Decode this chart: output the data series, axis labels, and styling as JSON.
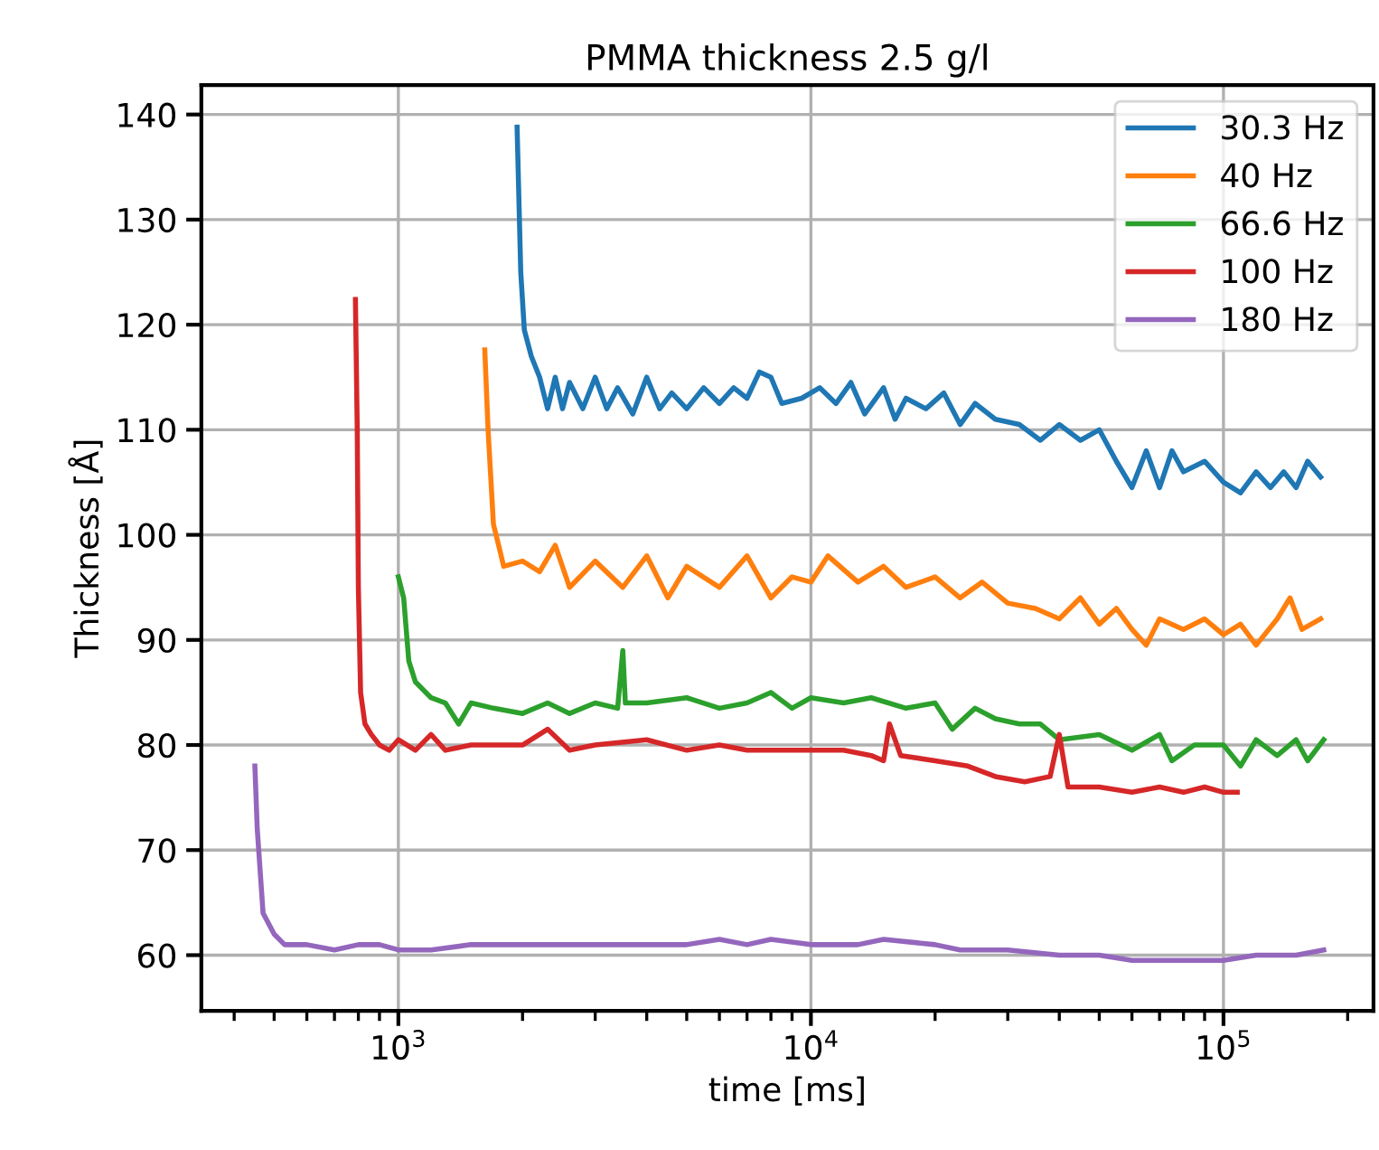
{
  "chart_data": {
    "type": "line",
    "title": "PMMA thickness 2.5 g/l",
    "xlabel": "time [ms]",
    "ylabel": "Thickness [Å]",
    "log": "x",
    "grid": true,
    "legend": "top right",
    "xlim": [
      333,
      231000
    ],
    "xticks": [
      {
        "value": 1000,
        "label": "10$^{3}$"
      },
      {
        "value": 10000,
        "label": "10$^{4}$"
      },
      {
        "value": 100000,
        "label": "10$^{5}$"
      }
    ],
    "ylim": [
      54.7,
      142.8
    ],
    "yticks": [
      60,
      70,
      80,
      90,
      100,
      110,
      120,
      130,
      140
    ],
    "series": [
      {
        "name": "30.3 Hz",
        "color": "#1f77b4",
        "x": [
          1940,
          1980,
          2020,
          2100,
          2200,
          2300,
          2400,
          2500,
          2600,
          2800,
          3000,
          3200,
          3400,
          3700,
          4000,
          4300,
          4600,
          5000,
          5500,
          6000,
          6500,
          7000,
          7500,
          8000,
          8500,
          9500,
          10500,
          11500,
          12500,
          13500,
          15000,
          16000,
          17000,
          19000,
          21000,
          23000,
          25000,
          28000,
          32000,
          36000,
          40000,
          45000,
          50000,
          55000,
          60000,
          65000,
          70000,
          75000,
          80000,
          90000,
          100000,
          110000,
          120000,
          130000,
          140000,
          150000,
          160000,
          172000
        ],
        "values": [
          138.8,
          125,
          119.5,
          117,
          115,
          112,
          115,
          112,
          114.5,
          112,
          115,
          112,
          114,
          111.5,
          115,
          112,
          113.5,
          112,
          114,
          112.5,
          114,
          113,
          115.5,
          115,
          112.5,
          113,
          114,
          112.5,
          114.5,
          111.5,
          114,
          111,
          113,
          112,
          113.5,
          110.5,
          112.5,
          111,
          110.5,
          109,
          110.5,
          109,
          110,
          107,
          104.5,
          108,
          104.5,
          108,
          106,
          107,
          105,
          104,
          106,
          104.5,
          106,
          104.5,
          107,
          105.5
        ]
      },
      {
        "name": "40 Hz",
        "color": "#ff7f0e",
        "x": [
          1620,
          1650,
          1700,
          1750,
          1800,
          2000,
          2200,
          2400,
          2600,
          3000,
          3500,
          4000,
          4500,
          5000,
          6000,
          7000,
          8000,
          9000,
          10000,
          11000,
          13000,
          15000,
          17000,
          20000,
          23000,
          26000,
          30000,
          35000,
          40000,
          45000,
          50000,
          55000,
          60000,
          65000,
          70000,
          80000,
          90000,
          100000,
          110000,
          120000,
          135000,
          145000,
          155000,
          172000
        ],
        "values": [
          117.6,
          110,
          101,
          99,
          97,
          97.5,
          96.5,
          99,
          95,
          97.5,
          95,
          98,
          94,
          97,
          95,
          98,
          94,
          96,
          95.5,
          98,
          95.5,
          97,
          95,
          96,
          94,
          95.5,
          93.5,
          93,
          92,
          94,
          91.5,
          93,
          91,
          89.5,
          92,
          91,
          92,
          90.5,
          91.5,
          89.5,
          92,
          94,
          91,
          92
        ]
      },
      {
        "name": "66.6 Hz",
        "color": "#2ca02c",
        "x": [
          1000,
          1030,
          1060,
          1100,
          1200,
          1300,
          1400,
          1500,
          1700,
          2000,
          2300,
          2600,
          3000,
          3400,
          3500,
          3550,
          4000,
          5000,
          6000,
          7000,
          8000,
          9000,
          10000,
          12000,
          14000,
          17000,
          20000,
          22000,
          25000,
          28000,
          32000,
          36000,
          40000,
          50000,
          60000,
          70000,
          75000,
          85000,
          100000,
          110000,
          120000,
          135000,
          150000,
          160000,
          175000
        ],
        "values": [
          96,
          94,
          88,
          86,
          84.5,
          84,
          82,
          84,
          83.5,
          83,
          84,
          83,
          84,
          83.5,
          89,
          84,
          84,
          84.5,
          83.5,
          84,
          85,
          83.5,
          84.5,
          84,
          84.5,
          83.5,
          84,
          81.5,
          83.5,
          82.5,
          82,
          82,
          80.5,
          81,
          79.5,
          81,
          78.5,
          80,
          80,
          78,
          80.5,
          79,
          80.5,
          78.5,
          80.5
        ]
      },
      {
        "name": "100 Hz",
        "color": "#d62728",
        "x": [
          787,
          795,
          800,
          810,
          830,
          860,
          900,
          950,
          1000,
          1100,
          1200,
          1300,
          1500,
          2000,
          2300,
          2600,
          3000,
          4000,
          5000,
          6000,
          7000,
          8000,
          10000,
          12000,
          14000,
          15000,
          15500,
          16500,
          20000,
          24000,
          28000,
          33000,
          38000,
          40000,
          42000,
          50000,
          60000,
          70000,
          80000,
          90000,
          100000,
          108000
        ],
        "values": [
          122.4,
          110,
          95,
          85,
          82,
          81,
          80,
          79.5,
          80.5,
          79.5,
          81,
          79.5,
          80,
          80,
          81.5,
          79.5,
          80,
          80.5,
          79.5,
          80,
          79.5,
          79.5,
          79.5,
          79.5,
          79,
          78.5,
          82,
          79,
          78.5,
          78,
          77,
          76.5,
          77,
          81,
          76,
          76,
          75.5,
          76,
          75.5,
          76,
          75.5,
          75.5
        ]
      },
      {
        "name": "180 Hz",
        "color": "#9467bd",
        "x": [
          449,
          455,
          470,
          500,
          530,
          600,
          700,
          800,
          900,
          1000,
          1200,
          1500,
          2000,
          3000,
          4000,
          5000,
          6000,
          7000,
          8000,
          10000,
          13000,
          15000,
          20000,
          23000,
          30000,
          40000,
          50000,
          60000,
          70000,
          80000,
          100000,
          120000,
          150000,
          175000
        ],
        "values": [
          78,
          72,
          64,
          62,
          61,
          61,
          60.5,
          61,
          61,
          60.5,
          60.5,
          61,
          61,
          61,
          61,
          61,
          61.5,
          61,
          61.5,
          61,
          61,
          61.5,
          61,
          60.5,
          60.5,
          60,
          60,
          59.5,
          59.5,
          59.5,
          59.5,
          60,
          60,
          60.5
        ]
      }
    ]
  }
}
